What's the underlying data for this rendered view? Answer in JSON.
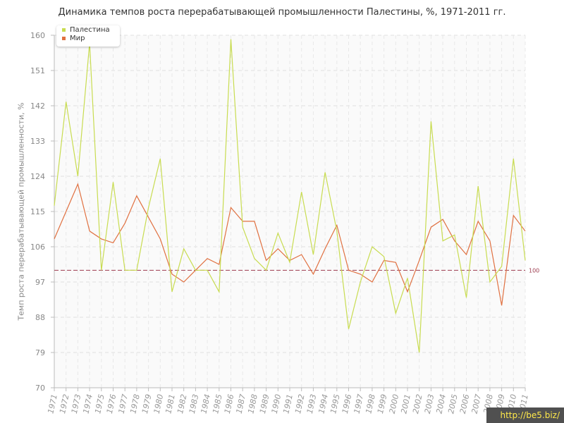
{
  "chart_data": {
    "type": "line",
    "title": "Динамика темпов роста перерабатывающей промышленности Палестины, %, 1971-2011 гг.",
    "ylabel": "Темп роста перерабатывающей промышленности, %",
    "xlabel": "",
    "ylim": [
      70,
      160
    ],
    "yticks": [
      70,
      79,
      88,
      97,
      106,
      115,
      124,
      133,
      142,
      151,
      160
    ],
    "categories": [
      "1971",
      "1972",
      "1973",
      "1974",
      "1975",
      "1976",
      "1977",
      "1978",
      "1979",
      "1980",
      "1981",
      "1982",
      "1983",
      "1984",
      "1985",
      "1986",
      "1987",
      "1988",
      "1989",
      "1990",
      "1991",
      "1992",
      "1993",
      "1994",
      "1995",
      "1996",
      "1997",
      "1998",
      "1999",
      "2000",
      "2001",
      "2002",
      "2003",
      "2004",
      "2005",
      "2006",
      "2007",
      "2008",
      "2009",
      "2010",
      "2011"
    ],
    "series": [
      {
        "name": "Палестина",
        "color": "#c8dc50",
        "values": [
          116.5,
          143.0,
          124.0,
          158.0,
          100.0,
          122.5,
          100.0,
          100.0,
          116.0,
          128.5,
          94.5,
          105.5,
          100.0,
          100.0,
          94.5,
          159.0,
          111.0,
          103.0,
          100.0,
          109.5,
          102.0,
          120.0,
          104.0,
          125.0,
          110.0,
          85.0,
          97.0,
          106.0,
          103.5,
          89.0,
          98.0,
          79.0,
          138.0,
          107.5,
          109.0,
          93.0,
          121.5,
          97.0,
          101.0,
          128.5,
          102.5
        ]
      },
      {
        "name": "Мир",
        "color": "#e07040",
        "values": [
          108.0,
          115.0,
          122.0,
          110.0,
          108.0,
          107.0,
          112.0,
          119.0,
          113.5,
          108.0,
          99.0,
          97.0,
          100.0,
          103.0,
          101.5,
          116.0,
          112.5,
          112.5,
          102.5,
          105.5,
          102.5,
          104.0,
          99.0,
          105.5,
          111.5,
          100.0,
          99.0,
          97.0,
          102.5,
          102.0,
          94.5,
          102.5,
          111.0,
          113.0,
          107.5,
          104.0,
          112.5,
          107.5,
          91.0,
          114.0,
          110.0
        ]
      }
    ],
    "reference_line": {
      "value": 100,
      "label": "100",
      "color": "#9c3b4e"
    },
    "legend": {
      "position": "top-left",
      "entries": [
        "Палестина",
        "Мир"
      ]
    },
    "grid": true
  },
  "watermark": "http://be5.biz/"
}
